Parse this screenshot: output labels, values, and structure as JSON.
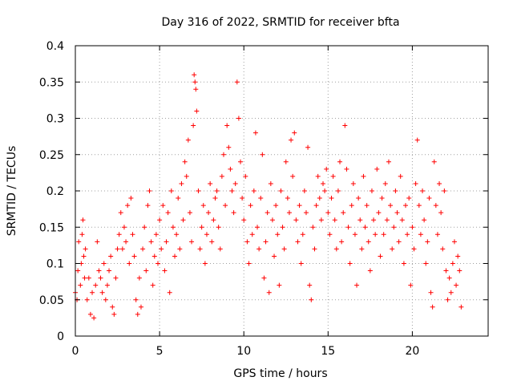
{
  "chart_data": {
    "type": "scatter",
    "title": "Day 316 of 2022, SRMTID for receiver bfta",
    "xlabel": "GPS time / hours",
    "ylabel": "SRMTID / TECUs",
    "xlim": [
      0,
      24.5
    ],
    "ylim": [
      0,
      0.4
    ],
    "x_ticks": [
      0,
      5,
      10,
      15,
      20
    ],
    "x_tick_labels": [
      "0",
      "5",
      "10",
      "15",
      "20"
    ],
    "y_ticks": [
      0,
      0.05,
      0.1,
      0.15,
      0.2,
      0.25,
      0.3,
      0.35,
      0.4
    ],
    "y_tick_labels": [
      "0",
      "0.05",
      "0.1",
      "0.15",
      "0.2",
      "0.25",
      "0.3",
      "0.35",
      "0.4"
    ],
    "grid": true,
    "marker": "+",
    "series": [
      {
        "name": "SRMTID",
        "color": "#ff0000",
        "points": [
          [
            0.0,
            0.06
          ],
          [
            0.1,
            0.05
          ],
          [
            0.15,
            0.09
          ],
          [
            0.2,
            0.13
          ],
          [
            0.3,
            0.07
          ],
          [
            0.35,
            0.1
          ],
          [
            0.4,
            0.14
          ],
          [
            0.45,
            0.16
          ],
          [
            0.5,
            0.11
          ],
          [
            0.55,
            0.08
          ],
          [
            0.6,
            0.12
          ],
          [
            0.7,
            0.05
          ],
          [
            0.8,
            0.08
          ],
          [
            0.9,
            0.03
          ],
          [
            1.0,
            0.06
          ],
          [
            1.1,
            0.025
          ],
          [
            1.2,
            0.07
          ],
          [
            1.3,
            0.13
          ],
          [
            1.4,
            0.09
          ],
          [
            1.5,
            0.08
          ],
          [
            1.6,
            0.06
          ],
          [
            1.7,
            0.1
          ],
          [
            1.8,
            0.05
          ],
          [
            1.9,
            0.07
          ],
          [
            2.0,
            0.09
          ],
          [
            2.1,
            0.11
          ],
          [
            2.2,
            0.04
          ],
          [
            2.3,
            0.03
          ],
          [
            2.4,
            0.08
          ],
          [
            2.5,
            0.12
          ],
          [
            2.6,
            0.14
          ],
          [
            2.7,
            0.17
          ],
          [
            2.8,
            0.12
          ],
          [
            2.9,
            0.15
          ],
          [
            3.0,
            0.13
          ],
          [
            3.1,
            0.18
          ],
          [
            3.2,
            0.1
          ],
          [
            3.3,
            0.19
          ],
          [
            3.4,
            0.14
          ],
          [
            3.5,
            0.11
          ],
          [
            3.6,
            0.05
          ],
          [
            3.7,
            0.03
          ],
          [
            3.8,
            0.08
          ],
          [
            3.9,
            0.04
          ],
          [
            4.0,
            0.12
          ],
          [
            4.1,
            0.15
          ],
          [
            4.2,
            0.09
          ],
          [
            4.3,
            0.18
          ],
          [
            4.4,
            0.2
          ],
          [
            4.5,
            0.13
          ],
          [
            4.6,
            0.07
          ],
          [
            4.7,
            0.11
          ],
          [
            4.8,
            0.14
          ],
          [
            4.9,
            0.1
          ],
          [
            5.0,
            0.16
          ],
          [
            5.1,
            0.12
          ],
          [
            5.2,
            0.18
          ],
          [
            5.3,
            0.09
          ],
          [
            5.4,
            0.13
          ],
          [
            5.5,
            0.17
          ],
          [
            5.6,
            0.06
          ],
          [
            5.7,
            0.2
          ],
          [
            5.8,
            0.15
          ],
          [
            5.9,
            0.11
          ],
          [
            6.0,
            0.14
          ],
          [
            6.1,
            0.19
          ],
          [
            6.2,
            0.12
          ],
          [
            6.3,
            0.21
          ],
          [
            6.4,
            0.16
          ],
          [
            6.5,
            0.24
          ],
          [
            6.6,
            0.22
          ],
          [
            6.7,
            0.27
          ],
          [
            6.8,
            0.17
          ],
          [
            6.9,
            0.13
          ],
          [
            7.0,
            0.29
          ],
          [
            7.05,
            0.36
          ],
          [
            7.1,
            0.35
          ],
          [
            7.15,
            0.34
          ],
          [
            7.2,
            0.31
          ],
          [
            7.3,
            0.2
          ],
          [
            7.4,
            0.12
          ],
          [
            7.5,
            0.15
          ],
          [
            7.6,
            0.18
          ],
          [
            7.7,
            0.1
          ],
          [
            7.8,
            0.14
          ],
          [
            7.9,
            0.17
          ],
          [
            8.0,
            0.21
          ],
          [
            8.1,
            0.13
          ],
          [
            8.2,
            0.16
          ],
          [
            8.3,
            0.19
          ],
          [
            8.4,
            0.2
          ],
          [
            8.5,
            0.15
          ],
          [
            8.6,
            0.12
          ],
          [
            8.7,
            0.22
          ],
          [
            8.8,
            0.25
          ],
          [
            8.9,
            0.18
          ],
          [
            9.0,
            0.29
          ],
          [
            9.1,
            0.26
          ],
          [
            9.2,
            0.23
          ],
          [
            9.3,
            0.2
          ],
          [
            9.4,
            0.17
          ],
          [
            9.5,
            0.21
          ],
          [
            9.6,
            0.35
          ],
          [
            9.7,
            0.3
          ],
          [
            9.8,
            0.24
          ],
          [
            9.9,
            0.19
          ],
          [
            10.0,
            0.16
          ],
          [
            10.1,
            0.22
          ],
          [
            10.2,
            0.13
          ],
          [
            10.3,
            0.1
          ],
          [
            10.4,
            0.18
          ],
          [
            10.5,
            0.14
          ],
          [
            10.6,
            0.2
          ],
          [
            10.7,
            0.28
          ],
          [
            10.8,
            0.15
          ],
          [
            10.9,
            0.12
          ],
          [
            11.0,
            0.19
          ],
          [
            11.1,
            0.25
          ],
          [
            11.2,
            0.08
          ],
          [
            11.3,
            0.13
          ],
          [
            11.4,
            0.17
          ],
          [
            11.5,
            0.06
          ],
          [
            11.6,
            0.21
          ],
          [
            11.7,
            0.16
          ],
          [
            11.8,
            0.11
          ],
          [
            11.9,
            0.18
          ],
          [
            12.0,
            0.14
          ],
          [
            12.1,
            0.07
          ],
          [
            12.2,
            0.2
          ],
          [
            12.3,
            0.15
          ],
          [
            12.4,
            0.12
          ],
          [
            12.5,
            0.24
          ],
          [
            12.6,
            0.19
          ],
          [
            12.7,
            0.17
          ],
          [
            12.8,
            0.27
          ],
          [
            12.9,
            0.22
          ],
          [
            13.0,
            0.28
          ],
          [
            13.1,
            0.16
          ],
          [
            13.2,
            0.13
          ],
          [
            13.3,
            0.18
          ],
          [
            13.4,
            0.1
          ],
          [
            13.5,
            0.14
          ],
          [
            13.6,
            0.2
          ],
          [
            13.7,
            0.17
          ],
          [
            13.8,
            0.26
          ],
          [
            13.9,
            0.07
          ],
          [
            14.0,
            0.05
          ],
          [
            14.1,
            0.15
          ],
          [
            14.2,
            0.12
          ],
          [
            14.3,
            0.18
          ],
          [
            14.4,
            0.22
          ],
          [
            14.5,
            0.19
          ],
          [
            14.6,
            0.16
          ],
          [
            14.7,
            0.21
          ],
          [
            14.8,
            0.2
          ],
          [
            14.9,
            0.23
          ],
          [
            15.0,
            0.17
          ],
          [
            15.1,
            0.14
          ],
          [
            15.2,
            0.19
          ],
          [
            15.3,
            0.22
          ],
          [
            15.4,
            0.16
          ],
          [
            15.5,
            0.12
          ],
          [
            15.6,
            0.2
          ],
          [
            15.7,
            0.24
          ],
          [
            15.8,
            0.13
          ],
          [
            15.9,
            0.17
          ],
          [
            16.0,
            0.29
          ],
          [
            16.1,
            0.23
          ],
          [
            16.2,
            0.15
          ],
          [
            16.3,
            0.1
          ],
          [
            16.4,
            0.18
          ],
          [
            16.5,
            0.21
          ],
          [
            16.6,
            0.14
          ],
          [
            16.7,
            0.07
          ],
          [
            16.8,
            0.19
          ],
          [
            16.9,
            0.16
          ],
          [
            17.0,
            0.12
          ],
          [
            17.1,
            0.22
          ],
          [
            17.2,
            0.15
          ],
          [
            17.3,
            0.18
          ],
          [
            17.4,
            0.13
          ],
          [
            17.5,
            0.09
          ],
          [
            17.6,
            0.2
          ],
          [
            17.7,
            0.16
          ],
          [
            17.8,
            0.14
          ],
          [
            17.9,
            0.23
          ],
          [
            18.0,
            0.17
          ],
          [
            18.1,
            0.11
          ],
          [
            18.2,
            0.19
          ],
          [
            18.3,
            0.14
          ],
          [
            18.4,
            0.21
          ],
          [
            18.5,
            0.16
          ],
          [
            18.6,
            0.24
          ],
          [
            18.7,
            0.18
          ],
          [
            18.8,
            0.12
          ],
          [
            18.9,
            0.15
          ],
          [
            19.0,
            0.2
          ],
          [
            19.1,
            0.17
          ],
          [
            19.2,
            0.13
          ],
          [
            19.3,
            0.22
          ],
          [
            19.4,
            0.16
          ],
          [
            19.5,
            0.1
          ],
          [
            19.6,
            0.18
          ],
          [
            19.7,
            0.14
          ],
          [
            19.8,
            0.19
          ],
          [
            19.9,
            0.07
          ],
          [
            20.0,
            0.15
          ],
          [
            20.1,
            0.12
          ],
          [
            20.2,
            0.21
          ],
          [
            20.3,
            0.27
          ],
          [
            20.4,
            0.18
          ],
          [
            20.5,
            0.14
          ],
          [
            20.6,
            0.2
          ],
          [
            20.7,
            0.16
          ],
          [
            20.8,
            0.1
          ],
          [
            20.9,
            0.13
          ],
          [
            21.0,
            0.19
          ],
          [
            21.1,
            0.06
          ],
          [
            21.2,
            0.04
          ],
          [
            21.3,
            0.24
          ],
          [
            21.4,
            0.18
          ],
          [
            21.5,
            0.14
          ],
          [
            21.6,
            0.21
          ],
          [
            21.7,
            0.17
          ],
          [
            21.8,
            0.12
          ],
          [
            21.9,
            0.2
          ],
          [
            22.0,
            0.09
          ],
          [
            22.1,
            0.05
          ],
          [
            22.2,
            0.08
          ],
          [
            22.3,
            0.06
          ],
          [
            22.4,
            0.1
          ],
          [
            22.5,
            0.13
          ],
          [
            22.6,
            0.07
          ],
          [
            22.7,
            0.11
          ],
          [
            22.8,
            0.09
          ],
          [
            22.9,
            0.04
          ]
        ]
      }
    ]
  }
}
